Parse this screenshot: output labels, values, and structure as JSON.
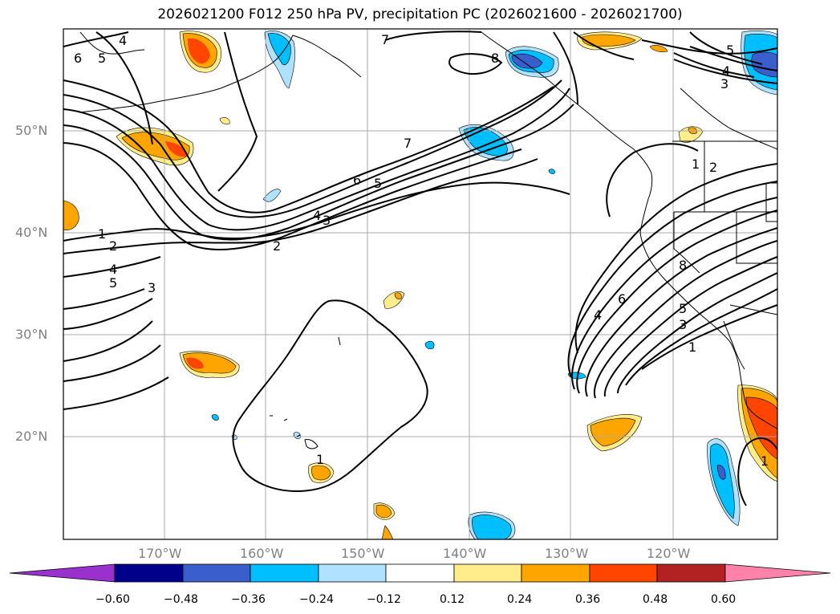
{
  "title": "2026021200 F012 250 hPa PV, precipitation PC (2026021600 - 2026021700)",
  "lat_labels": [
    "50°N",
    "40°N",
    "30°N",
    "20°N"
  ],
  "lon_labels": [
    "170°W",
    "160°W",
    "150°W",
    "140°W",
    "130°W",
    "120°W"
  ],
  "contour_labels": [
    "1",
    "2",
    "3",
    "4",
    "5",
    "6",
    "7",
    "8"
  ],
  "colorbar": {
    "ticks": [
      "−0.60",
      "−0.48",
      "−0.36",
      "−0.24",
      "−0.12",
      "0.12",
      "0.24",
      "0.36",
      "0.48",
      "0.60"
    ],
    "colors": [
      "#9932cc",
      "#00008b",
      "#3a5fcd",
      "#00bfff",
      "#b0e2ff",
      "#ffffff",
      "#ffec8b",
      "#ffa500",
      "#ff4500",
      "#b22222",
      "#ff82ab"
    ]
  }
}
